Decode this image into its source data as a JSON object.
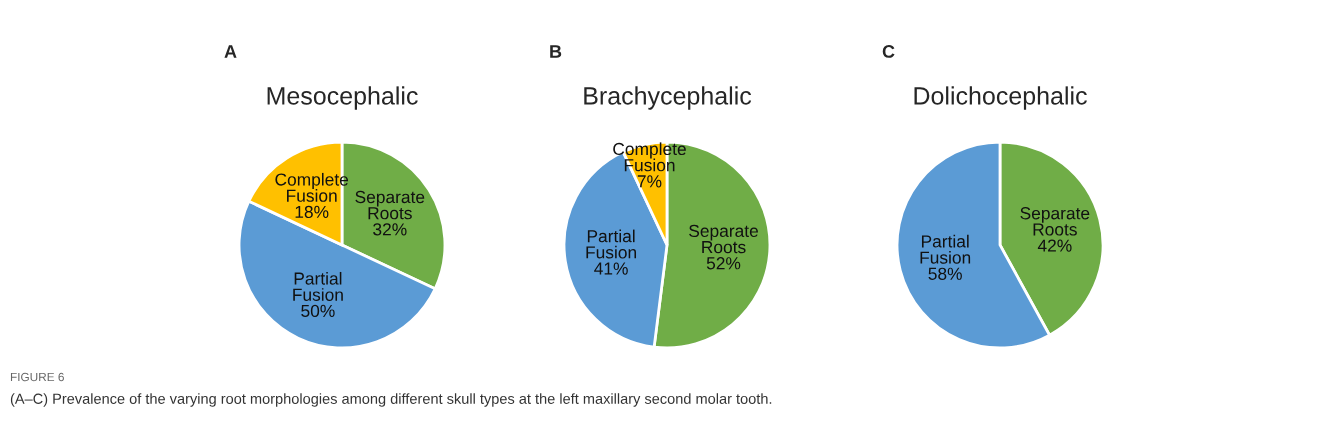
{
  "chart_data": [
    {
      "type": "pie",
      "title": "Mesocephalic",
      "categories": [
        "Separate Roots",
        "Partial Fusion",
        "Complete Fusion"
      ],
      "values": [
        32,
        50,
        18
      ],
      "value_labels": [
        "32%",
        "50%",
        "18%"
      ],
      "colors": [
        "#70ad47",
        "#5b9bd5",
        "#ffc000"
      ],
      "annotations": [
        "A",
        "FIGURE 6",
        "(A–C) Prevalence of the varying root morphologies among different skull types at the left maxillary second molar tooth."
      ]
    },
    {
      "type": "pie",
      "title": "Brachycephalic",
      "categories": [
        "Separate Roots",
        "Partial Fusion",
        "Complete Fusion"
      ],
      "values": [
        52,
        41,
        7
      ],
      "value_labels": [
        "52%",
        "41%",
        "7%"
      ],
      "colors": [
        "#70ad47",
        "#5b9bd5",
        "#ffc000"
      ],
      "annotations": [
        "B"
      ]
    },
    {
      "type": "pie",
      "title": "Dolichocephalic",
      "categories": [
        "Separate Roots",
        "Partial Fusion"
      ],
      "values": [
        42,
        58
      ],
      "value_labels": [
        "42%",
        "58%"
      ],
      "colors": [
        "#70ad47",
        "#5b9bd5"
      ],
      "annotations": [
        "C"
      ]
    }
  ]
}
